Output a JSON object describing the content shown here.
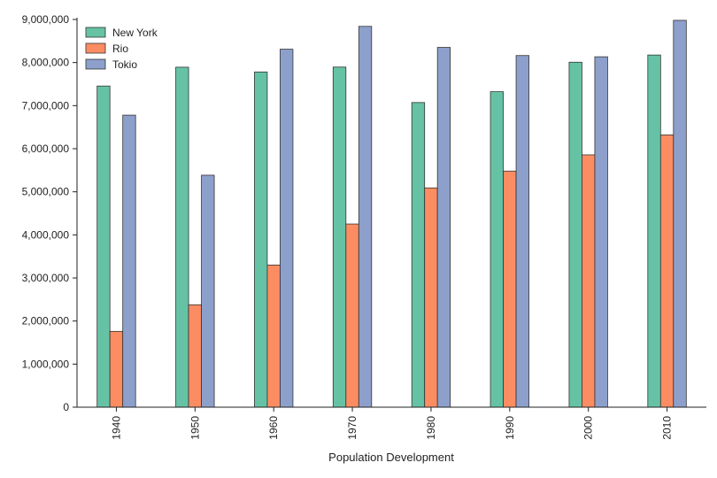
{
  "chart_data": {
    "type": "bar",
    "categories": [
      "1940",
      "1950",
      "1960",
      "1970",
      "1980",
      "1990",
      "2000",
      "2010"
    ],
    "series": [
      {
        "name": "New York",
        "color": "#66c2a5",
        "values": [
          7455000,
          7892000,
          7782000,
          7895000,
          7072000,
          7323000,
          8008000,
          8175000
        ]
      },
      {
        "name": "Rio",
        "color": "#fc8d62",
        "values": [
          1760000,
          2377000,
          3300000,
          4252000,
          5090000,
          5481000,
          5857000,
          6320000
        ]
      },
      {
        "name": "Tokio",
        "color": "#8da0cb",
        "values": [
          6779000,
          5385000,
          8310000,
          8840000,
          8352000,
          8163000,
          8134000,
          8980000
        ]
      }
    ],
    "title": "",
    "xlabel": "Population Development",
    "ylabel": "",
    "ylim": [
      0,
      9000000
    ],
    "yticks": [
      0,
      1000000,
      2000000,
      3000000,
      4000000,
      5000000,
      6000000,
      7000000,
      8000000,
      9000000
    ],
    "ytick_labels": [
      "0",
      "1,000,000",
      "2,000,000",
      "3,000,000",
      "4,000,000",
      "5,000,000",
      "6,000,000",
      "7,000,000",
      "8,000,000",
      "9,000,000"
    ],
    "grid": false,
    "legend_position": "top-left",
    "xtick_rotation": "vertical"
  }
}
